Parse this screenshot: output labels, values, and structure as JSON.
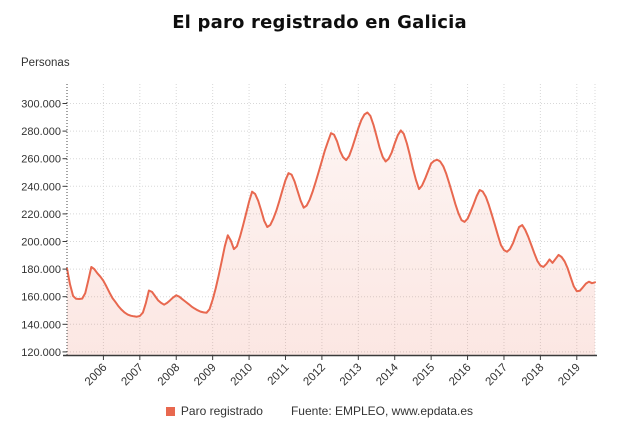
{
  "title": "El paro registrado en Galicia",
  "y_axis_unit": "Personas",
  "legend": {
    "series_label": "Paro registrado",
    "source": "Fuente: EMPLEO, www.epdata.es"
  },
  "colors": {
    "line": "#e8684f",
    "fill_top": "rgba(232,104,79,0.07)",
    "fill_bottom": "rgba(232,104,79,0.16)",
    "grid": "#d8d8d8",
    "axis": "#3a3a3a",
    "text": "#333333",
    "title": "#0e0e0e"
  },
  "chart_data": {
    "type": "area",
    "title": "El paro registrado en Galicia",
    "ylabel": "Personas",
    "xlabel": "",
    "grid": true,
    "legend_position": "bottom",
    "frequency": "monthly",
    "x_start": "2005-01",
    "x_end": "2019-07",
    "x_tick_labels": [
      "2006",
      "2007",
      "2008",
      "2009",
      "2010",
      "2011",
      "2012",
      "2013",
      "2014",
      "2015",
      "2016",
      "2017",
      "2018",
      "2019"
    ],
    "y_ticks": [
      120000,
      140000,
      160000,
      180000,
      200000,
      220000,
      240000,
      260000,
      280000,
      300000
    ],
    "y_tick_labels": [
      "120.000",
      "140.000",
      "160.000",
      "180.000",
      "200.000",
      "220.000",
      "240.000",
      "260.000",
      "280.000",
      "300.000"
    ],
    "ylim": [
      117500,
      314000
    ],
    "series": [
      {
        "name": "Paro registrado",
        "values": [
          180500,
          169000,
          160500,
          158500,
          158300,
          158600,
          162500,
          171500,
          181500,
          180000,
          177000,
          174500,
          171500,
          167500,
          163000,
          159000,
          156000,
          153000,
          150500,
          148500,
          147000,
          146200,
          145800,
          145500,
          146000,
          148500,
          155500,
          164500,
          163500,
          160500,
          157500,
          155500,
          154200,
          155500,
          157500,
          159500,
          161000,
          160000,
          158200,
          156500,
          154800,
          153000,
          151500,
          150200,
          149200,
          148600,
          148400,
          151000,
          158000,
          166000,
          175500,
          186000,
          196500,
          204500,
          200500,
          194500,
          196500,
          203500,
          211500,
          220000,
          229000,
          236100,
          234500,
          229500,
          222500,
          215000,
          210500,
          212000,
          216500,
          222500,
          229500,
          237000,
          244500,
          249500,
          248500,
          243500,
          236500,
          229500,
          224500,
          226000,
          230500,
          236500,
          243500,
          251000,
          258500,
          266000,
          272500,
          278500,
          277500,
          272500,
          265500,
          261000,
          259000,
          262000,
          268000,
          275000,
          282000,
          288000,
          292000,
          293500,
          291000,
          284500,
          276500,
          268000,
          261500,
          258000,
          260000,
          264500,
          271000,
          277000,
          280500,
          278000,
          271000,
          262500,
          253000,
          244500,
          238000,
          240500,
          245500,
          251000,
          256500,
          258500,
          259300,
          258000,
          254500,
          249000,
          242000,
          234500,
          227000,
          220500,
          215500,
          214200,
          216500,
          221500,
          227000,
          233000,
          237300,
          236200,
          232500,
          226500,
          219500,
          212000,
          204500,
          197500,
          193800,
          192600,
          194500,
          199000,
          205000,
          210500,
          211900,
          208500,
          203500,
          197500,
          191500,
          186000,
          182500,
          181600,
          183800,
          187000,
          184500,
          187500,
          190300,
          188800,
          185500,
          180500,
          174000,
          167500,
          164000,
          164300,
          166800,
          169500,
          170900,
          169800,
          170400
        ]
      }
    ]
  }
}
